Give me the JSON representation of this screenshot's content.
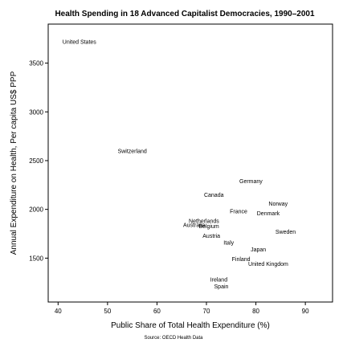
{
  "chart_data": {
    "type": "scatter",
    "title": "Health Spending in 18 Advanced Capitalist Democracies, 1990–2001",
    "xlabel": "Public Share of Total Health Expenditure (%)",
    "ylabel": "Annual Expenditure on Health, Per capita US$ PPP",
    "source": "Source: OECD Health Data",
    "xlim": [
      38,
      95.5
    ],
    "ylim": [
      1050,
      3900
    ],
    "xticks": [
      40,
      50,
      60,
      70,
      80,
      90
    ],
    "yticks": [
      1500,
      2000,
      2500,
      3000,
      3500
    ],
    "grid": false,
    "points": [
      {
        "label": "United States",
        "x": 44.3,
        "y": 3720
      },
      {
        "label": "Switzerland",
        "x": 55.0,
        "y": 2600
      },
      {
        "label": "Germany",
        "x": 79.0,
        "y": 2290
      },
      {
        "label": "Canada",
        "x": 71.5,
        "y": 2150
      },
      {
        "label": "Norway",
        "x": 84.5,
        "y": 2060
      },
      {
        "label": "France",
        "x": 76.5,
        "y": 1980
      },
      {
        "label": "Denmark",
        "x": 82.5,
        "y": 1960
      },
      {
        "label": "Netherlands",
        "x": 69.5,
        "y": 1880
      },
      {
        "label": "Australia",
        "x": 67.5,
        "y": 1840
      },
      {
        "label": "Belgium",
        "x": 70.5,
        "y": 1830
      },
      {
        "label": "Sweden",
        "x": 86.0,
        "y": 1770
      },
      {
        "label": "Austria",
        "x": 71.0,
        "y": 1730
      },
      {
        "label": "Italy",
        "x": 74.5,
        "y": 1660
      },
      {
        "label": "Japan",
        "x": 80.5,
        "y": 1590
      },
      {
        "label": "Finland",
        "x": 77.0,
        "y": 1490
      },
      {
        "label": "United Kingdom",
        "x": 82.5,
        "y": 1440
      },
      {
        "label": "Ireland",
        "x": 72.5,
        "y": 1280
      },
      {
        "label": "Spain",
        "x": 73.0,
        "y": 1210
      }
    ]
  }
}
